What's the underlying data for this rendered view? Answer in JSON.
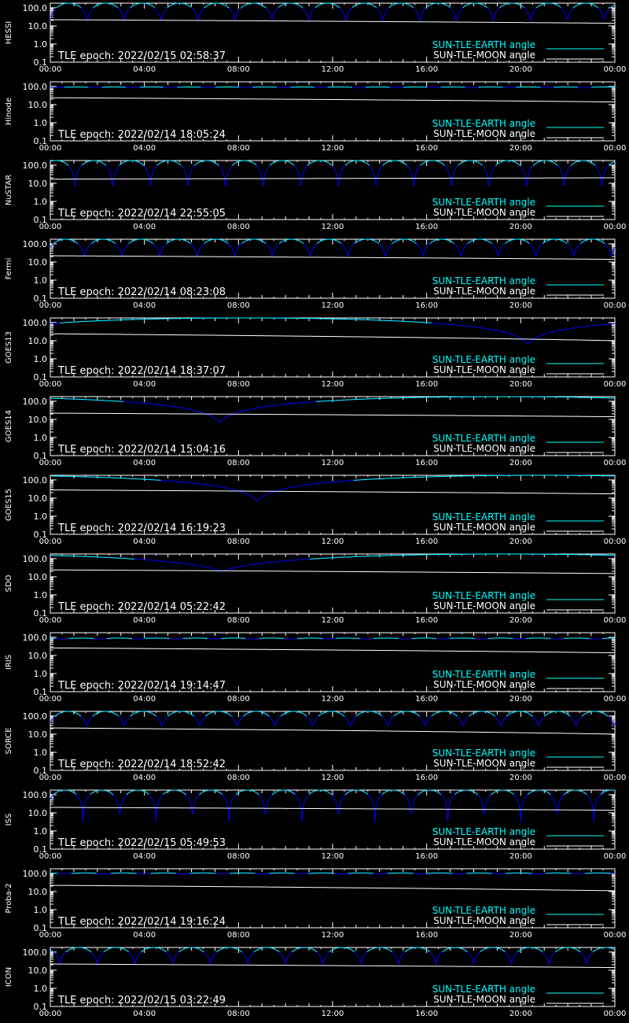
{
  "colors": {
    "background": "#000000",
    "axes": "#ffffff",
    "earth_visible": "#00ffff",
    "earth_occulted": "#0000ff",
    "moon": "#ffffff"
  },
  "legend": {
    "earth_label": "SUN-TLE-EARTH angle",
    "moon_label": "SUN-TLE-MOON angle"
  },
  "chart_data": {
    "type": "line",
    "y_scale": "log",
    "ylim": [
      0.1,
      180
    ],
    "y_ticks": [
      "100.0",
      "10.0",
      "1.0",
      "0.1"
    ],
    "x_tick_labels": [
      "00:00",
      "04:00",
      "08:00",
      "12:00",
      "16:00",
      "20:00",
      "00:00"
    ],
    "x_range_hours": [
      0,
      24
    ],
    "panels": [
      {
        "name": "HESSI",
        "epoch": "TLE epoch: 2022/02/15 02:58:37",
        "kind": "leo",
        "period_h": 1.57,
        "phase_h": 0.0,
        "min_deg": 18,
        "moon": [
          22,
          14
        ]
      },
      {
        "name": "Hinode",
        "epoch": "TLE epoch: 2022/02/14 18:05:24",
        "kind": "ripple",
        "period_h": 1.6,
        "phase_h": 0.3,
        "base_deg": 90,
        "amp_deg": 8,
        "moon": [
          24,
          14
        ]
      },
      {
        "name": "NuSTAR",
        "epoch": "TLE epoch: 2022/02/14 22:55:05",
        "kind": "leo",
        "period_h": 1.6,
        "phase_h": 1.05,
        "min_deg": 1.8,
        "moon": [
          17,
          20
        ]
      },
      {
        "name": "Fermi",
        "epoch": "TLE epoch: 2022/02/14 08:23:08",
        "kind": "leo",
        "period_h": 1.6,
        "phase_h": 1.45,
        "min_deg": 18,
        "moon": [
          22,
          14
        ]
      },
      {
        "name": "GOES13",
        "epoch": "TLE epoch: 2022/02/14 18:37:07",
        "kind": "geo",
        "dip_h": 20.3,
        "min_deg": 6.5,
        "moon": [
          24,
          10
        ]
      },
      {
        "name": "GOES14",
        "epoch": "TLE epoch: 2022/02/14 15:04:16",
        "kind": "geo",
        "dip_h": 7.2,
        "min_deg": 6.5,
        "moon": [
          22,
          14
        ]
      },
      {
        "name": "GOES15",
        "epoch": "TLE epoch: 2022/02/14 16:19:23",
        "kind": "geo",
        "dip_h": 8.8,
        "min_deg": 6.5,
        "moon": [
          28,
          17
        ]
      },
      {
        "name": "SDO",
        "epoch": "TLE epoch: 2022/02/14 05:22:42",
        "kind": "geo",
        "dip_h": 7.3,
        "min_deg": 20,
        "moon": [
          24,
          15
        ]
      },
      {
        "name": "IRIS",
        "epoch": "TLE epoch: 2022/02/14 19:14:47",
        "kind": "ripple",
        "period_h": 1.62,
        "phase_h": 0.5,
        "base_deg": 85,
        "amp_deg": 12,
        "moon": [
          26,
          14
        ]
      },
      {
        "name": "SORCE",
        "epoch": "TLE epoch: 2022/02/14 18:52:42",
        "kind": "leo",
        "period_h": 1.6,
        "phase_h": 1.55,
        "min_deg": 25,
        "moon": [
          22,
          10
        ]
      },
      {
        "name": "ISS",
        "epoch": "TLE epoch: 2022/02/15 05:49:53",
        "kind": "leo",
        "period_h": 1.55,
        "phase_h": 1.4,
        "min_deg": 3.2,
        "moon": [
          20,
          14
        ]
      },
      {
        "name": "Proba-2",
        "epoch": "TLE epoch: 2022/02/14 19:16:24",
        "kind": "ripple",
        "period_h": 1.68,
        "phase_h": 0.6,
        "base_deg": 100,
        "amp_deg": 12,
        "moon": [
          22,
          11
        ]
      },
      {
        "name": "ICON",
        "epoch": "TLE epoch: 2022/02/15 03:22:49",
        "kind": "leo",
        "period_h": 1.6,
        "phase_h": 0.4,
        "min_deg": 22,
        "moon": [
          22,
          14
        ]
      }
    ]
  }
}
